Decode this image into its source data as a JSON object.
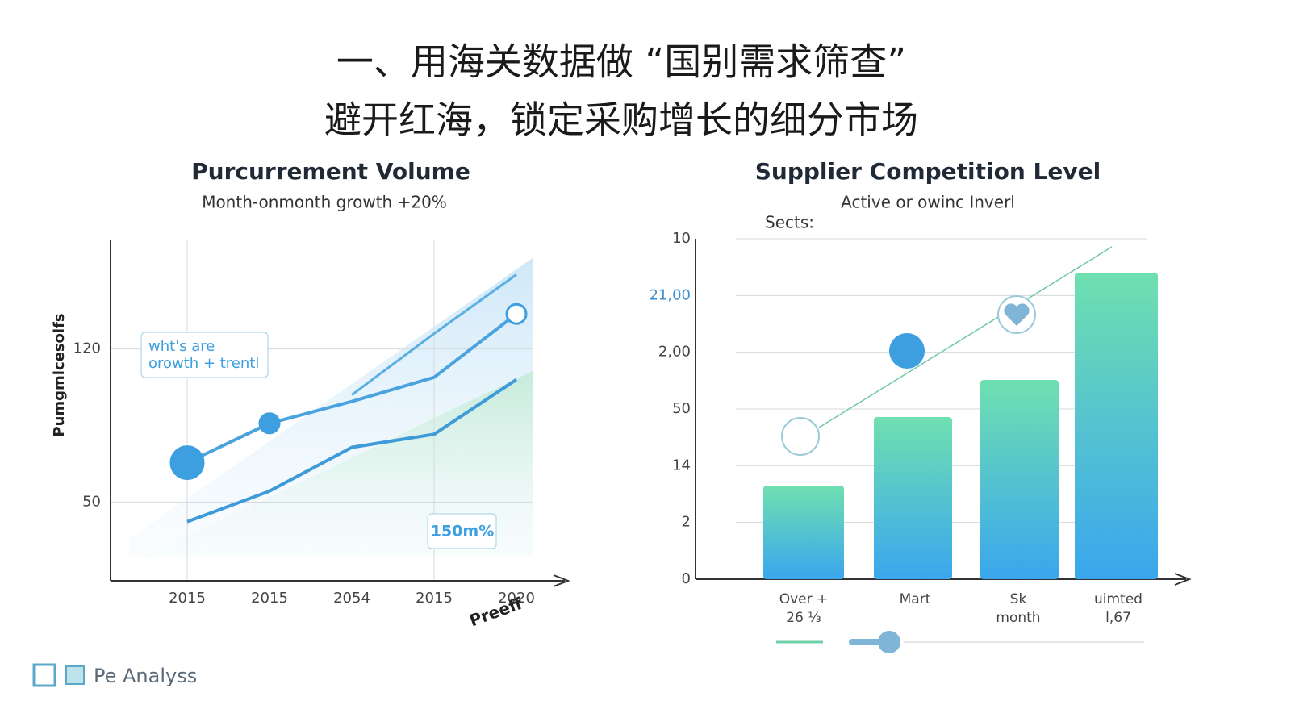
{
  "header": {
    "line1": "一、用海关数据做 “国别需求筛查”",
    "line2": "避开红海，锁定采购增长的细分市场"
  },
  "chart_data": [
    {
      "type": "line",
      "title": "Purcurrement Volume",
      "subtitle": "Month-onmonth growth +20%",
      "y_label": "Pumgmlcesolfs",
      "categories": [
        "2015",
        "2015",
        "2054",
        "2015",
        "2020"
      ],
      "ylim": [
        14,
        170
      ],
      "yticks": [
        50,
        120
      ],
      "series": [
        {
          "color": "#4aa3df",
          "values": [
            68,
            86,
            96,
            107,
            136
          ]
        },
        {
          "color": "#3f9bd8",
          "values": [
            41,
            55,
            75,
            81,
            106
          ]
        },
        {
          "color": "#5aafe0",
          "values": [
            null,
            null,
            99,
            127,
            154
          ]
        }
      ],
      "annotations": [
        "wht's are",
        "orowth + trentl",
        "150m%",
        "Preeff"
      ]
    },
    {
      "type": "bar",
      "title": "Supplier Competition Level",
      "subtitle": "Active or owinc Inverl",
      "y_title": "Sects:",
      "y_labels": [
        "10",
        "21,00",
        "2,00",
        "50",
        "14",
        "2",
        "0"
      ],
      "categories": [
        [
          "Over +",
          "26 ⅓"
        ],
        [
          "Mart"
        ],
        [
          "Sk",
          "month"
        ],
        [
          "uimted",
          "l,67"
        ]
      ]
    }
  ],
  "footer": {
    "brand": "Pe Analyss"
  }
}
